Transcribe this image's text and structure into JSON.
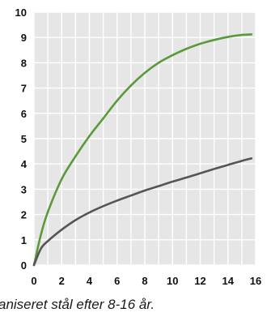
{
  "caption": "aniseret stål efter 8-16 år.",
  "chart_data": {
    "type": "line",
    "title": "",
    "xlabel": "",
    "ylabel": "",
    "xlim": [
      0,
      16
    ],
    "ylim": [
      0,
      10
    ],
    "x_ticks": [
      0,
      2,
      4,
      6,
      8,
      10,
      12,
      14,
      16
    ],
    "y_ticks": [
      0,
      1,
      2,
      3,
      4,
      5,
      6,
      7,
      8,
      9,
      10
    ],
    "grid": true,
    "series": [
      {
        "color": "#5a9a3a",
        "x": [
          0,
          0.5,
          1,
          2,
          3,
          4,
          5,
          6,
          7,
          8,
          9,
          10,
          11,
          12,
          13,
          14,
          15,
          15.7
        ],
        "y": [
          0,
          1.2,
          2.1,
          3.4,
          4.3,
          5.1,
          5.8,
          6.5,
          7.1,
          7.6,
          8.0,
          8.3,
          8.55,
          8.75,
          8.9,
          9.02,
          9.1,
          9.12
        ]
      },
      {
        "color": "#555555",
        "x": [
          0,
          0.5,
          1,
          2,
          3,
          4,
          5,
          6,
          7,
          8,
          9,
          10,
          11,
          12,
          13,
          14,
          15,
          15.7
        ],
        "y": [
          0,
          0.65,
          0.95,
          1.4,
          1.78,
          2.08,
          2.33,
          2.55,
          2.75,
          2.95,
          3.12,
          3.3,
          3.46,
          3.63,
          3.8,
          3.96,
          4.12,
          4.22
        ]
      }
    ],
    "background": "#e6e6e6"
  }
}
